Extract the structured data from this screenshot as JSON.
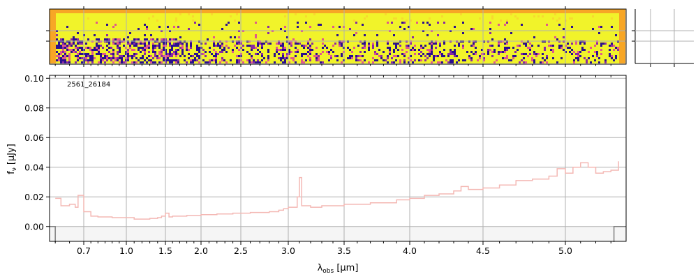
{
  "chart_data": [
    {
      "type": "heatmap",
      "panel": "2d-spectrum",
      "colormap": "plasma",
      "palette": [
        "#f7a626",
        "#f1f32a",
        "#f8d92f",
        "#e0598b",
        "#cc4778",
        "#8a2aa3",
        "#2a0f8e",
        "#1a0a82"
      ],
      "grid": true
    },
    {
      "type": "line",
      "panel": "1d-spectrum",
      "title": "",
      "annotation": "2561_26184",
      "xlabel": "λobs [μm]",
      "ylabel": "fν [μJy]",
      "x_ticks": [
        "0.7",
        "1.0",
        "1.5",
        "2.0",
        "2.5",
        "3.0",
        "3.5",
        "4.0",
        "4.5",
        "5.0"
      ],
      "x_tick_values": [
        0.7,
        1.0,
        1.5,
        2.0,
        2.5,
        3.0,
        3.5,
        4.0,
        4.5,
        5.0
      ],
      "y_ticks": [
        "0.00",
        "0.02",
        "0.04",
        "0.06",
        "0.08",
        "0.10"
      ],
      "y_tick_values": [
        0.0,
        0.02,
        0.04,
        0.06,
        0.08,
        0.1
      ],
      "xlim": [
        0.58,
        5.4
      ],
      "ylim": [
        -0.01,
        0.102
      ],
      "x_axis_scale": "nonlinear (prism dispersion)",
      "grid": true,
      "series": [
        {
          "color": "#f4b8b4",
          "style": "steps",
          "x": [
            0.6,
            0.62,
            0.65,
            0.67,
            0.68,
            0.7,
            0.75,
            0.8,
            0.9,
            1.0,
            1.1,
            1.2,
            1.3,
            1.4,
            1.45,
            1.5,
            1.55,
            1.6,
            1.8,
            2.0,
            2.2,
            2.4,
            2.6,
            2.8,
            2.9,
            2.95,
            3.0,
            3.04,
            3.08,
            3.1,
            3.12,
            3.2,
            3.3,
            3.5,
            3.7,
            3.9,
            4.0,
            4.1,
            4.2,
            4.3,
            4.35,
            4.4,
            4.5,
            4.6,
            4.7,
            4.8,
            4.9,
            4.95,
            5.0,
            5.05,
            5.1,
            5.15,
            5.2,
            5.25,
            5.3,
            5.35
          ],
          "y": [
            0.019,
            0.014,
            0.015,
            0.013,
            0.021,
            0.01,
            0.007,
            0.0065,
            0.006,
            0.006,
            0.005,
            0.005,
            0.0055,
            0.006,
            0.007,
            0.009,
            0.0065,
            0.007,
            0.0075,
            0.008,
            0.0085,
            0.009,
            0.0095,
            0.01,
            0.011,
            0.012,
            0.013,
            0.013,
            0.02,
            0.033,
            0.014,
            0.013,
            0.014,
            0.015,
            0.016,
            0.018,
            0.019,
            0.021,
            0.022,
            0.024,
            0.027,
            0.025,
            0.026,
            0.028,
            0.031,
            0.032,
            0.034,
            0.039,
            0.036,
            0.04,
            0.043,
            0.04,
            0.036,
            0.037,
            0.038,
            0.044
          ]
        },
        {
          "color": "#808080",
          "style": "zero-level"
        }
      ]
    }
  ]
}
